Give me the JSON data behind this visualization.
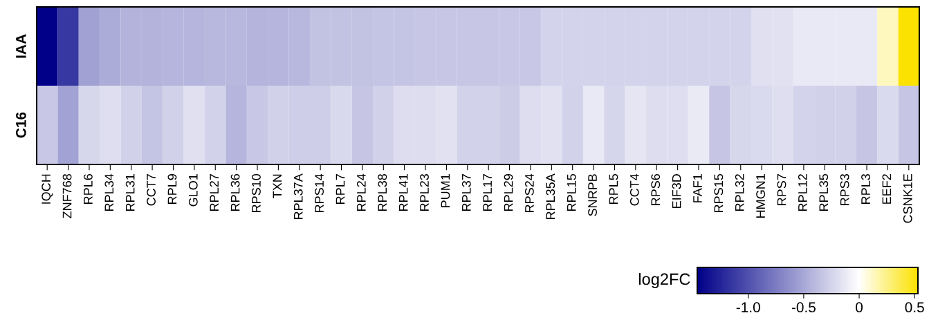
{
  "chart_data": {
    "type": "heatmap",
    "clabel": "log2FC",
    "categories": [
      "IQCH",
      "ZNF768",
      "RPL6",
      "RPL34",
      "RPL31",
      "CCT7",
      "RPL9",
      "GLO1",
      "RPL27",
      "RPL36",
      "RPS10",
      "TXN",
      "RPL37A",
      "RPS14",
      "RPL7",
      "RPL24",
      "RPL38",
      "RPL41",
      "RPL23",
      "PUM1",
      "RPL37",
      "RPL17",
      "RPL29",
      "RPS24",
      "RPL35A",
      "RPL15",
      "SNRPB",
      "RPL5",
      "CCT4",
      "RPS6",
      "EIF3D",
      "FAF1",
      "RPS15",
      "RPL32",
      "HMGN1",
      "RPS7",
      "RPL12",
      "RPL35",
      "RPS3",
      "RPL3",
      "EEF2",
      "CSNK1E"
    ],
    "y_categories": [
      "IAA",
      "C16"
    ],
    "cells": [
      [
        -1.46,
        -1.14,
        -0.54,
        -0.48,
        -0.44,
        -0.44,
        -0.42,
        -0.42,
        -0.41,
        -0.41,
        -0.43,
        -0.42,
        -0.41,
        -0.35,
        -0.35,
        -0.35,
        -0.34,
        -0.34,
        -0.32,
        -0.32,
        -0.32,
        -0.32,
        -0.31,
        -0.31,
        -0.25,
        -0.25,
        -0.25,
        -0.25,
        -0.25,
        -0.25,
        -0.25,
        -0.25,
        -0.25,
        -0.25,
        -0.18,
        -0.17,
        -0.13,
        -0.13,
        -0.13,
        -0.13,
        0.13,
        0.53
      ],
      [
        -0.31,
        -0.53,
        -0.23,
        -0.19,
        -0.27,
        -0.34,
        -0.27,
        -0.18,
        -0.26,
        -0.42,
        -0.31,
        -0.27,
        -0.28,
        -0.28,
        -0.22,
        -0.33,
        -0.27,
        -0.2,
        -0.2,
        -0.17,
        -0.26,
        -0.26,
        -0.29,
        -0.2,
        -0.17,
        -0.26,
        -0.13,
        -0.24,
        -0.15,
        -0.2,
        -0.19,
        -0.12,
        -0.33,
        -0.23,
        -0.21,
        -0.19,
        -0.25,
        -0.27,
        -0.27,
        -0.33,
        -0.21,
        -0.33
      ]
    ],
    "clim": [
      -1.46,
      0.53
    ],
    "cticks": [
      {
        "value": -1.0,
        "label": "-1.0"
      },
      {
        "value": -0.5,
        "label": "-0.5"
      },
      0,
      {
        "value": 0.5,
        "label": "0.5"
      }
    ]
  }
}
